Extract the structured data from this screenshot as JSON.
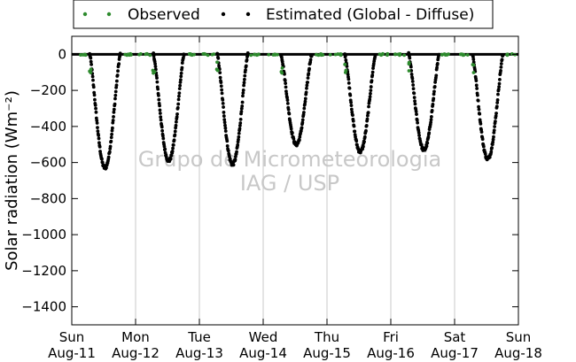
{
  "chart_data": {
    "type": "scatter",
    "title": "",
    "xlabel": "",
    "ylabel": "Solar radiation ($Wm^{-2}$)",
    "ylabel_display": "Solar radiation (Wm⁻²)",
    "ylim": [
      -1500,
      100
    ],
    "yticks": [
      0,
      -200,
      -400,
      -600,
      -800,
      -1000,
      -1200,
      -1400
    ],
    "xlim": [
      0,
      7
    ],
    "x_unit": "days since Sun Aug-11 00:00",
    "xticks": [
      {
        "day": "Sun",
        "date": "Aug-11"
      },
      {
        "day": "Mon",
        "date": "Aug-12"
      },
      {
        "day": "Tue",
        "date": "Aug-13"
      },
      {
        "day": "Wed",
        "date": "Aug-14"
      },
      {
        "day": "Thu",
        "date": "Aug-15"
      },
      {
        "day": "Fri",
        "date": "Aug-16"
      },
      {
        "day": "Sat",
        "date": "Aug-17"
      },
      {
        "day": "Sun",
        "date": "Aug-18"
      }
    ],
    "grid": "vertical",
    "legend_position": "top-center",
    "watermark": [
      "Grupo de Micrometeorologia",
      "IAG / USP"
    ],
    "series": [
      {
        "name": "Observed",
        "color": "#2e8b2e",
        "marker": "dot"
      },
      {
        "name": "Estimated (Global - Diffuse)",
        "color": "#000000",
        "marker": "dot"
      }
    ],
    "daily_minima": [
      {
        "date": "Aug-11",
        "value": -630
      },
      {
        "date": "Aug-12",
        "value": -590
      },
      {
        "date": "Aug-13",
        "value": -610
      },
      {
        "date": "Aug-14",
        "value": -500
      },
      {
        "date": "Aug-15",
        "value": -540
      },
      {
        "date": "Aug-16",
        "value": -530
      },
      {
        "date": "Aug-17",
        "value": -580
      }
    ]
  }
}
